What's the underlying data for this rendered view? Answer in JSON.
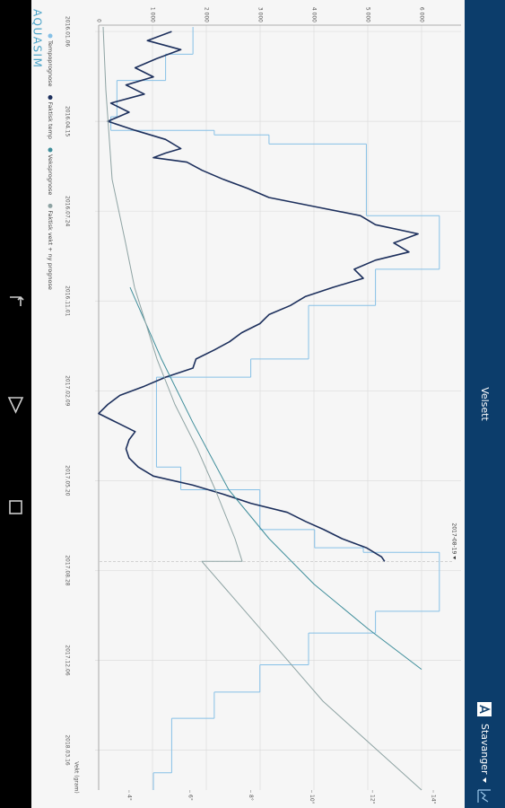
{
  "header": {
    "title": "Velsett",
    "location": "Stavanger"
  },
  "logo": "AQUASIM",
  "chart_data": {
    "type": "line",
    "y_label": "Vekt (gram)",
    "xlim": [
      -7,
      836
    ],
    "xticks": [
      {
        "value": 0,
        "label": "2016.01.06"
      },
      {
        "value": 99,
        "label": "2016.04.15"
      },
      {
        "value": 198,
        "label": "2016.07.24"
      },
      {
        "value": 297,
        "label": "2016.11.01"
      },
      {
        "value": 396,
        "label": "2017.02.09"
      },
      {
        "value": 495,
        "label": "2017.05.20"
      },
      {
        "value": 594,
        "label": "2017.08.28"
      },
      {
        "value": 693,
        "label": "2017.12.06"
      },
      {
        "value": 792,
        "label": "2018.03.16"
      }
    ],
    "ylim": [
      0,
      6500
    ],
    "yticks": [
      0,
      {
        "value": 1000,
        "label": "1 000"
      },
      {
        "value": 2000,
        "label": "2 000"
      },
      {
        "value": 3000,
        "label": "3 000"
      },
      {
        "value": 4000,
        "label": "4 000"
      },
      {
        "value": 5000,
        "label": "5 000"
      },
      {
        "value": 6000,
        "label": "6 000"
      }
    ],
    "y2lim": [
      3,
      14.5
    ],
    "y2ticks": [
      {
        "value": 4,
        "label": "4°"
      },
      {
        "value": 6,
        "label": "6°"
      },
      {
        "value": 8,
        "label": "8°"
      },
      {
        "value": 10,
        "label": "10°"
      },
      {
        "value": 12,
        "label": "12°"
      },
      {
        "value": 14,
        "label": "14°"
      }
    ],
    "grid": true,
    "annotation": {
      "x": 584,
      "label": "2017-08-19"
    },
    "series": [
      {
        "name": "Tempoprognose",
        "color": "#86c0e6",
        "axis": "y2",
        "step": true,
        "x": [
          -5,
          25,
          54,
          94,
          109,
          114,
          124,
          203,
          262,
          302,
          361,
          381,
          480,
          505,
          549,
          569,
          574,
          639,
          663,
          698,
          728,
          757,
          817
        ],
        "values": [
          6.1,
          5.2,
          3.6,
          3.4,
          6.8,
          8.6,
          11.8,
          14.2,
          12.1,
          9.9,
          8.0,
          4.9,
          5.7,
          8.3,
          10.1,
          11.7,
          14.2,
          12.1,
          9.9,
          8.3,
          6.8,
          5.4,
          4.8
        ]
      },
      {
        "name": "Faktisk temp",
        "color": "#1c2f5c",
        "axis": "y2",
        "x": [
          0,
          10,
          20,
          30,
          40,
          50,
          59,
          69,
          79,
          89,
          99,
          109,
          119,
          129,
          134,
          139,
          144,
          153,
          163,
          173,
          183,
          193,
          203,
          213,
          223,
          233,
          243,
          252,
          262,
          272,
          282,
          292,
          302,
          312,
          322,
          332,
          342,
          351,
          361,
          371,
          381,
          391,
          401,
          411,
          421,
          431,
          441,
          450,
          460,
          470,
          480,
          490,
          500,
          510,
          520,
          530,
          540,
          549,
          559,
          569,
          579,
          584
        ],
        "values": [
          5.4,
          4.6,
          5.7,
          4.9,
          4.2,
          4.8,
          3.9,
          4.5,
          3.4,
          4.0,
          3.3,
          4.2,
          5.2,
          5.7,
          5.2,
          4.8,
          5.9,
          6.4,
          7.1,
          7.9,
          8.6,
          10.1,
          11.6,
          12.1,
          13.5,
          12.7,
          13.2,
          12.1,
          11.4,
          11.7,
          10.7,
          9.8,
          9.3,
          8.6,
          8.3,
          7.7,
          7.3,
          6.8,
          6.2,
          6.1,
          5.2,
          4.5,
          3.7,
          3.3,
          3.0,
          3.6,
          4.2,
          4.0,
          3.9,
          4.0,
          4.3,
          4.8,
          6.1,
          7.1,
          8.0,
          9.2,
          9.8,
          10.4,
          11.0,
          11.8,
          12.3,
          12.4
        ]
      },
      {
        "name": "Veksprognose",
        "color": "#3f8e9b",
        "x": [
          282,
          361,
          431,
          505,
          559,
          609,
          658,
          703
        ],
        "values": [
          583,
          1167,
          1750,
          2417,
          3167,
          4000,
          5000,
          6000
        ]
      },
      {
        "name": "Faktisk vekt + ny prognose",
        "color": "#8ea3a3",
        "x": [
          -5,
          64,
          163,
          233,
          282,
          361,
          411,
          460,
          505,
          559,
          584,
          584,
          658,
          738,
          836
        ],
        "values": [
          83,
          133,
          250,
          500,
          667,
          1083,
          1417,
          1833,
          2167,
          2533,
          2667,
          1917,
          3000,
          4167,
          6000
        ]
      }
    ]
  }
}
